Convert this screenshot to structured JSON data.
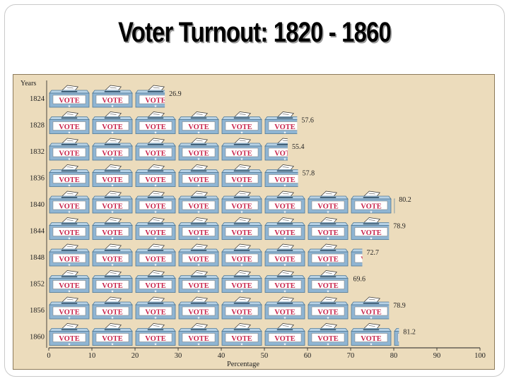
{
  "page_title": "Voter Turnout:  1820 - 1860",
  "vote_icon_label": "VOTE",
  "chart_data": {
    "type": "bar",
    "style": "pictograph",
    "orientation": "horizontal",
    "title": "Voter Turnout:  1820 - 1860",
    "ylabel": "Years",
    "xlabel": "Percentage",
    "categories": [
      "1824",
      "1828",
      "1832",
      "1836",
      "1840",
      "1844",
      "1848",
      "1852",
      "1856",
      "1860"
    ],
    "values": [
      26.9,
      57.6,
      55.4,
      57.8,
      80.2,
      78.9,
      72.7,
      69.6,
      78.9,
      81.2
    ],
    "value_labels": [
      "26.9",
      "57.6",
      "55.4",
      "57.8",
      "80.2",
      "78.9",
      "72.7",
      "69.6",
      "78.9",
      "81.2"
    ],
    "xlim": [
      0,
      100
    ],
    "xticks": [
      "0",
      "10",
      "20",
      "30",
      "40",
      "50",
      "60",
      "70",
      "80",
      "90",
      "100"
    ],
    "units_per_icon": 10,
    "grid": false,
    "colors": {
      "panel": "#ecdcbc",
      "box_body": "#8fb5d3",
      "box_top": "#b7d2e6",
      "box_edge": "#4f7896",
      "label_bg": "#ffffff",
      "label_text": "#c8234a",
      "axis": "#222222"
    }
  }
}
